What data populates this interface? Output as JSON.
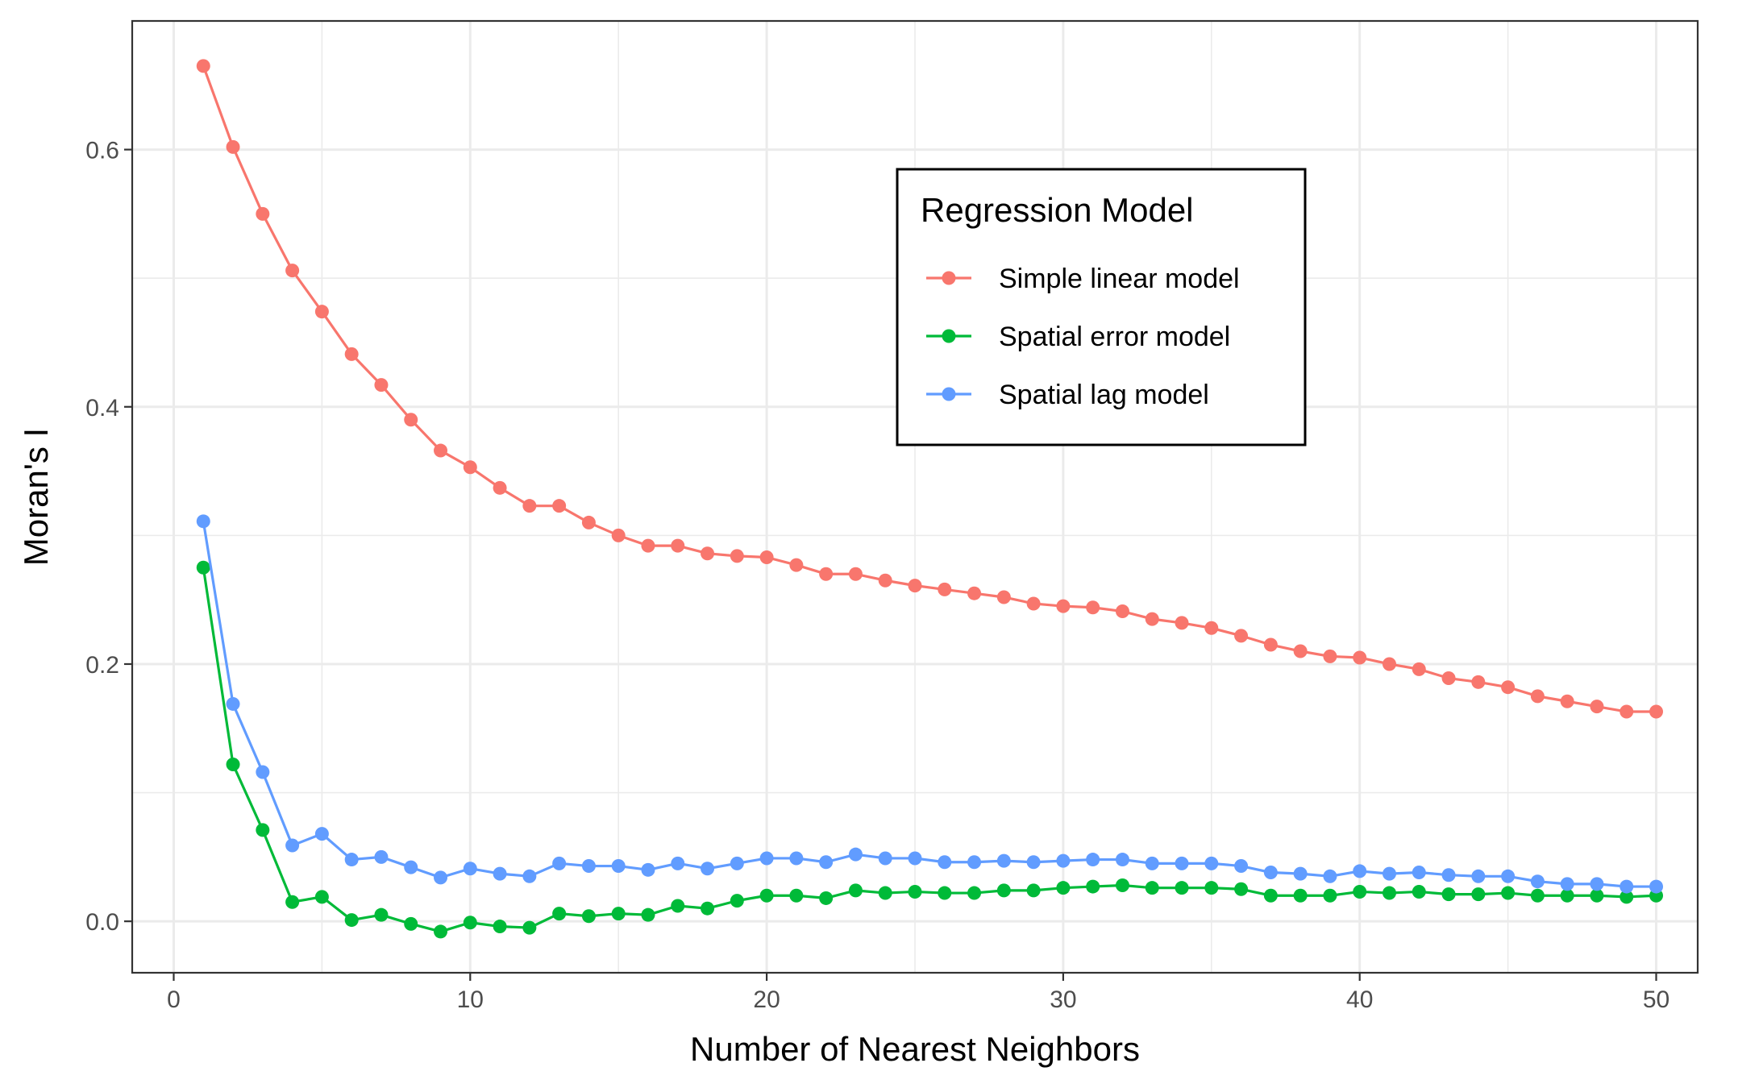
{
  "chart_data": {
    "type": "line",
    "title": "",
    "xlabel": "Number of Nearest Neighbors",
    "ylabel": "Moran's I",
    "xlim": [
      -1.4,
      51.4
    ],
    "ylim": [
      -0.04,
      0.7
    ],
    "x_ticks": [
      0,
      10,
      20,
      30,
      40,
      50
    ],
    "y_ticks": [
      0.0,
      0.2,
      0.4,
      0.6
    ],
    "x_tick_labels": [
      "0",
      "10",
      "20",
      "30",
      "40",
      "50"
    ],
    "y_tick_labels": [
      "0.0",
      "0.2",
      "0.4",
      "0.6"
    ],
    "grid": true,
    "markers": true,
    "legend": {
      "title": "Regression Model",
      "position": "top-right inside"
    },
    "x": [
      1,
      2,
      3,
      4,
      5,
      6,
      7,
      8,
      9,
      10,
      11,
      12,
      13,
      14,
      15,
      16,
      17,
      18,
      19,
      20,
      21,
      22,
      23,
      24,
      25,
      26,
      27,
      28,
      29,
      30,
      31,
      32,
      33,
      34,
      35,
      36,
      37,
      38,
      39,
      40,
      41,
      42,
      43,
      44,
      45,
      46,
      47,
      48,
      49,
      50
    ],
    "series": [
      {
        "name": "Simple linear model",
        "color": "#F8766D",
        "values": [
          0.665,
          0.602,
          0.55,
          0.506,
          0.474,
          0.441,
          0.417,
          0.39,
          0.366,
          0.353,
          0.337,
          0.323,
          0.323,
          0.31,
          0.3,
          0.292,
          0.292,
          0.286,
          0.284,
          0.283,
          0.277,
          0.27,
          0.27,
          0.265,
          0.261,
          0.258,
          0.255,
          0.252,
          0.247,
          0.245,
          0.244,
          0.241,
          0.235,
          0.232,
          0.228,
          0.222,
          0.215,
          0.21,
          0.206,
          0.205,
          0.2,
          0.196,
          0.189,
          0.186,
          0.182,
          0.175,
          0.171,
          0.167,
          0.163,
          0.163
        ]
      },
      {
        "name": "Spatial error model",
        "color": "#00BA38",
        "values": [
          0.275,
          0.122,
          0.071,
          0.015,
          0.019,
          0.001,
          0.005,
          -0.002,
          -0.008,
          -0.001,
          -0.004,
          -0.005,
          0.006,
          0.004,
          0.006,
          0.005,
          0.012,
          0.01,
          0.016,
          0.02,
          0.02,
          0.018,
          0.024,
          0.022,
          0.023,
          0.022,
          0.022,
          0.024,
          0.024,
          0.026,
          0.027,
          0.028,
          0.026,
          0.026,
          0.026,
          0.025,
          0.02,
          0.02,
          0.02,
          0.023,
          0.022,
          0.023,
          0.021,
          0.021,
          0.022,
          0.02,
          0.02,
          0.02,
          0.019,
          0.02
        ]
      },
      {
        "name": "Spatial lag model",
        "color": "#619CFF",
        "values": [
          0.311,
          0.169,
          0.116,
          0.059,
          0.068,
          0.048,
          0.05,
          0.042,
          0.034,
          0.041,
          0.037,
          0.035,
          0.045,
          0.043,
          0.043,
          0.04,
          0.045,
          0.041,
          0.045,
          0.049,
          0.049,
          0.046,
          0.052,
          0.049,
          0.049,
          0.046,
          0.046,
          0.047,
          0.046,
          0.047,
          0.048,
          0.048,
          0.045,
          0.045,
          0.045,
          0.043,
          0.038,
          0.037,
          0.035,
          0.039,
          0.037,
          0.038,
          0.036,
          0.035,
          0.035,
          0.031,
          0.029,
          0.029,
          0.027,
          0.027
        ]
      }
    ]
  }
}
